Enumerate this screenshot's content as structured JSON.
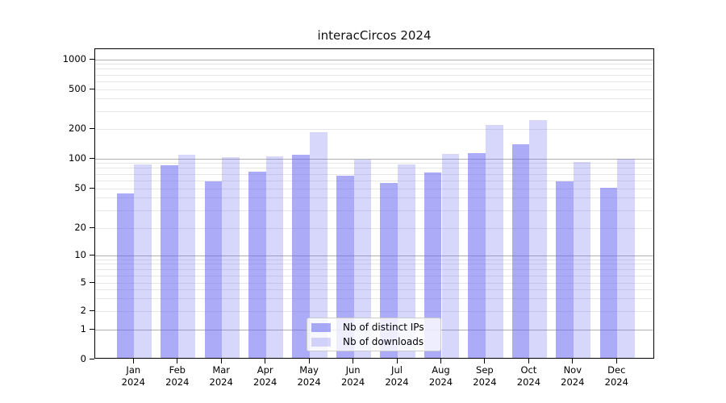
{
  "title": "interacCircos 2024",
  "chart_data": {
    "type": "bar",
    "title": "interacCircos 2024",
    "categories": [
      "Jan 2024",
      "Feb 2024",
      "Mar 2024",
      "Apr 2024",
      "May 2024",
      "Jun 2024",
      "Jul 2024",
      "Aug 2024",
      "Sep 2024",
      "Oct 2024",
      "Nov 2024",
      "Dec 2024"
    ],
    "series": [
      {
        "name": "Nb of distinct IPs",
        "color": "#6666f0",
        "alpha": 0.55,
        "values": [
          43,
          83,
          57,
          71,
          106,
          65,
          55,
          70,
          110,
          134,
          57,
          49
        ]
      },
      {
        "name": "Nb of downloads",
        "color": "#6666f0",
        "alpha": 0.26,
        "values": [
          84,
          106,
          101,
          102,
          179,
          94,
          85,
          107,
          210,
          236,
          90,
          96
        ]
      }
    ],
    "yscale": "symlog",
    "y_ticks": [
      0,
      1,
      2,
      5,
      10,
      20,
      50,
      100,
      200,
      500,
      1000
    ],
    "xlabel": "",
    "ylabel": "",
    "grid": true,
    "legend_position": "lower center"
  },
  "colors": {
    "bar_fill": "#6666f0",
    "grid_major": "#b0b0b0",
    "grid_minor": "#e6e6e6",
    "spine": "#000000",
    "legend_border": "#cccccc"
  }
}
